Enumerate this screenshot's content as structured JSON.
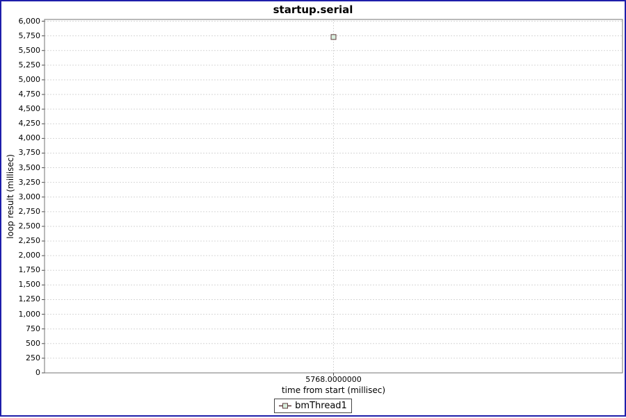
{
  "window": {
    "frame_border_color": "#1e1eaa",
    "background_color": "#ffffff"
  },
  "colors": {
    "plot_border": "#737373",
    "gridline": "#d6d6d6",
    "tick_mark": "#4d4d4d",
    "text": "#000000",
    "series_stroke": "#5f3c3c",
    "series_fill": "#d8eede",
    "legend_border": "#444444"
  },
  "chart_data": {
    "type": "scatter",
    "title": "startup.serial",
    "xlabel": "time from start (millisec)",
    "ylabel": "loop result (millisec)",
    "xlim": [
      5758,
      5778
    ],
    "ylim": [
      0,
      6030
    ],
    "grid": true,
    "legend_position": "bottom",
    "x_ticks": [
      {
        "value": 5768,
        "label": "5768.0000000"
      }
    ],
    "y_ticks": [
      {
        "value": 0,
        "label": "0"
      },
      {
        "value": 250,
        "label": "250"
      },
      {
        "value": 500,
        "label": "500"
      },
      {
        "value": 750,
        "label": "750"
      },
      {
        "value": 1000,
        "label": "1,000"
      },
      {
        "value": 1250,
        "label": "1,250"
      },
      {
        "value": 1500,
        "label": "1,500"
      },
      {
        "value": 1750,
        "label": "1,750"
      },
      {
        "value": 2000,
        "label": "2,000"
      },
      {
        "value": 2250,
        "label": "2,250"
      },
      {
        "value": 2500,
        "label": "2,500"
      },
      {
        "value": 2750,
        "label": "2,750"
      },
      {
        "value": 3000,
        "label": "3,000"
      },
      {
        "value": 3250,
        "label": "3,250"
      },
      {
        "value": 3500,
        "label": "3,500"
      },
      {
        "value": 3750,
        "label": "3,750"
      },
      {
        "value": 4000,
        "label": "4,000"
      },
      {
        "value": 4250,
        "label": "4,250"
      },
      {
        "value": 4500,
        "label": "4,500"
      },
      {
        "value": 4750,
        "label": "4,750"
      },
      {
        "value": 5000,
        "label": "5,000"
      },
      {
        "value": 5250,
        "label": "5,250"
      },
      {
        "value": 5500,
        "label": "5,500"
      },
      {
        "value": 5750,
        "label": "5,750"
      },
      {
        "value": 6000,
        "label": "6,000"
      }
    ],
    "series": [
      {
        "name": "bmThread1",
        "marker": "square",
        "points": [
          {
            "x": 5768,
            "y": 5730
          }
        ]
      }
    ],
    "legend": {
      "entries": [
        {
          "label": "bmThread1",
          "marker": "square-line"
        }
      ]
    }
  }
}
